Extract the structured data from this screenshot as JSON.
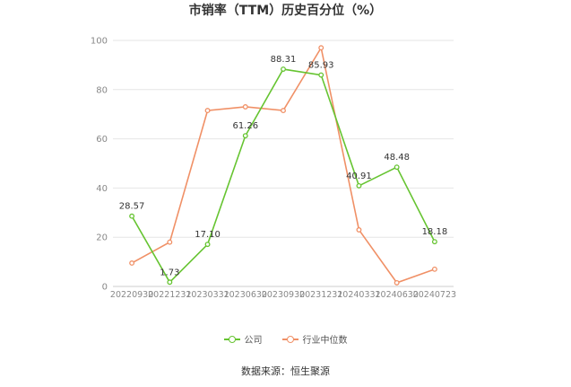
{
  "chart_data": {
    "type": "line",
    "title": "市销率（TTM）历史百分位（%）",
    "categories": [
      "20220930",
      "20221231",
      "20230331",
      "20230630",
      "20230930",
      "20231231",
      "20240331",
      "20240630",
      "20240723"
    ],
    "ylim": [
      0,
      100
    ],
    "yticks": [
      0,
      20,
      40,
      60,
      80,
      100
    ],
    "grid": true,
    "legend": "bottom",
    "series": [
      {
        "name": "公司",
        "color": "#66c431",
        "values": [
          28.57,
          1.73,
          17.1,
          61.26,
          88.31,
          85.93,
          40.91,
          48.48,
          18.18
        ],
        "labels": [
          "28.57",
          "1.73",
          "17.10",
          "61.26",
          "88.31",
          "85.93",
          "40.91",
          "48.48",
          "18.18"
        ]
      },
      {
        "name": "行业中位数",
        "color": "#f09066",
        "values": [
          9.5,
          18,
          71.5,
          73,
          71.5,
          97,
          23,
          1.5,
          7
        ]
      }
    ]
  },
  "source": "数据来源：恒生聚源"
}
